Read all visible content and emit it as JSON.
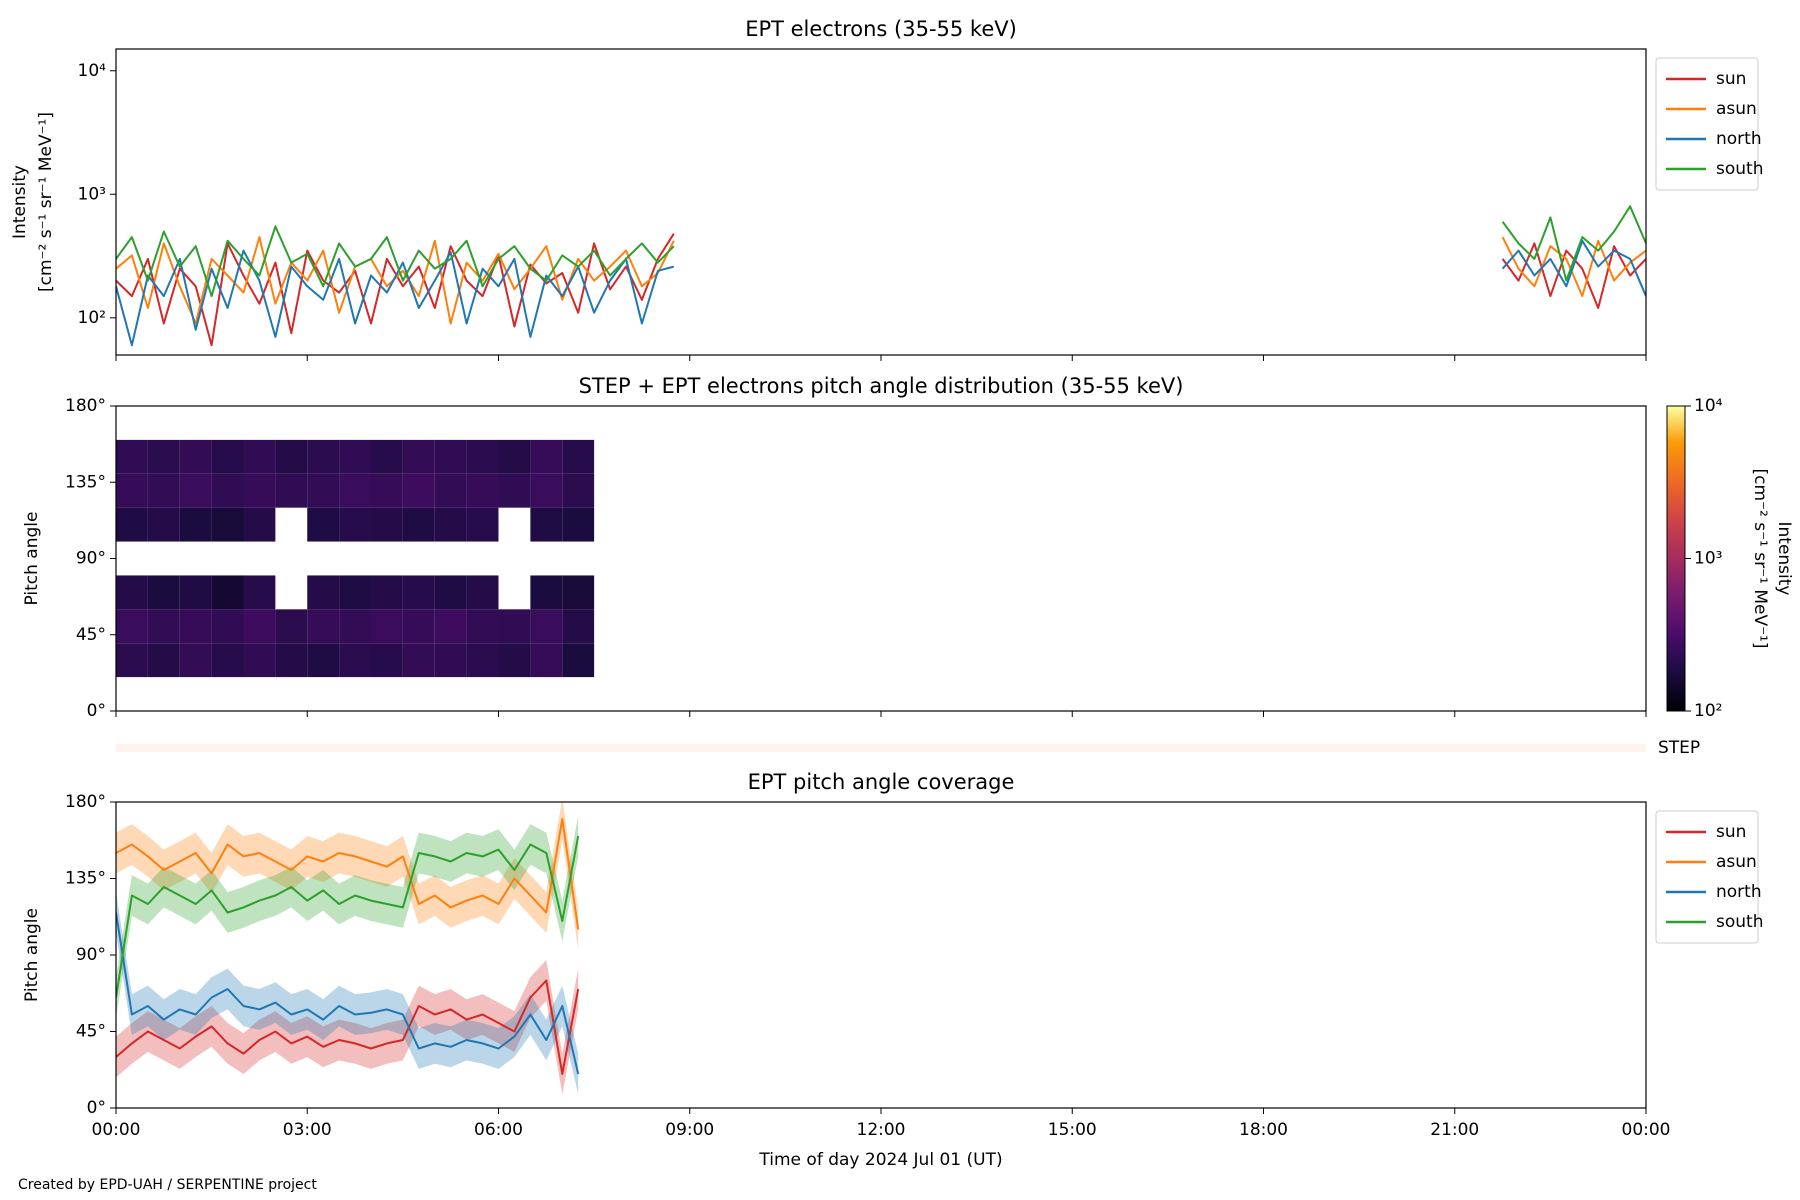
{
  "chart_data": [
    {
      "type": "line",
      "title": "EPT electrons (35-55 keV)",
      "ylabel": [
        "Intensity",
        "[cm⁻² s⁻¹ sr⁻¹ MeV⁻¹]"
      ],
      "yscale": "log",
      "ylim": [
        50,
        15000
      ],
      "yticks": [
        {
          "value": 100,
          "label": "10²"
        },
        {
          "value": 1000,
          "label": "10³"
        },
        {
          "value": 10000,
          "label": "10⁴"
        }
      ],
      "xlim": [
        0,
        24
      ],
      "xticks": [
        0,
        3,
        6,
        9,
        12,
        15,
        18,
        21,
        24
      ],
      "legend": "outside right",
      "x": [
        0,
        0.25,
        0.5,
        0.75,
        1,
        1.25,
        1.5,
        1.75,
        2,
        2.25,
        2.5,
        2.75,
        3,
        3.25,
        3.5,
        3.75,
        4,
        4.25,
        4.5,
        4.75,
        5,
        5.25,
        5.5,
        5.75,
        6,
        6.25,
        6.5,
        6.75,
        7,
        7.25,
        7.5,
        7.75,
        8,
        8.25,
        8.5,
        8.75,
        15,
        21.75,
        22,
        22.25,
        22.5,
        22.75,
        23,
        23.25,
        23.5,
        23.75,
        24
      ],
      "series": [
        {
          "name": "sun",
          "color": "#d62728",
          "values": [
            200,
            150,
            300,
            90,
            250,
            180,
            60,
            400,
            220,
            130,
            280,
            75,
            350,
            200,
            160,
            240,
            90,
            300,
            180,
            260,
            120,
            380,
            200,
            150,
            320,
            85,
            270,
            190,
            230,
            110,
            400,
            170,
            260,
            140,
            300,
            480,
            null,
            300,
            200,
            400,
            150,
            350,
            250,
            120,
            380,
            220,
            300
          ]
        },
        {
          "name": "asun",
          "color": "#ff7f0e",
          "values": [
            250,
            320,
            120,
            400,
            180,
            90,
            300,
            220,
            160,
            450,
            130,
            280,
            200,
            350,
            110,
            260,
            300,
            180,
            240,
            150,
            420,
            90,
            280,
            200,
            330,
            170,
            250,
            380,
            140,
            300,
            200,
            260,
            350,
            180,
            230,
            420,
            null,
            450,
            250,
            180,
            380,
            300,
            150,
            420,
            200,
            280,
            350
          ]
        },
        {
          "name": "north",
          "color": "#1f77b4",
          "values": [
            180,
            60,
            220,
            150,
            300,
            80,
            250,
            120,
            350,
            200,
            70,
            260,
            180,
            140,
            300,
            90,
            220,
            160,
            280,
            120,
            200,
            340,
            90,
            250,
            180,
            300,
            70,
            220,
            150,
            260,
            110,
            200,
            300,
            90,
            240,
            260,
            null,
            250,
            350,
            220,
            300,
            180,
            420,
            260,
            350,
            300,
            150
          ]
        },
        {
          "name": "south",
          "color": "#2ca02c",
          "values": [
            300,
            450,
            200,
            500,
            260,
            380,
            150,
            420,
            300,
            220,
            550,
            280,
            330,
            180,
            400,
            260,
            300,
            450,
            200,
            350,
            250,
            300,
            420,
            180,
            300,
            380,
            250,
            200,
            320,
            260,
            350,
            220,
            300,
            400,
            280,
            380,
            null,
            600,
            400,
            300,
            650,
            200,
            450,
            350,
            500,
            800,
            400
          ]
        }
      ]
    },
    {
      "type": "heatmap",
      "title": "STEP + EPT electrons pitch angle distribution (35-55 keV)",
      "ylabel": "Pitch angle",
      "ylim": [
        0,
        180
      ],
      "yticks": [
        {
          "value": 0,
          "label": "0°"
        },
        {
          "value": 45,
          "label": "45°"
        },
        {
          "value": 90,
          "label": "90°"
        },
        {
          "value": 135,
          "label": "135°"
        },
        {
          "value": 180,
          "label": "180°"
        }
      ],
      "xlim": [
        0,
        24
      ],
      "xticks": [
        0,
        3,
        6,
        9,
        12,
        15,
        18,
        21,
        24
      ],
      "xbins": [
        0,
        0.5,
        1,
        1.5,
        2,
        2.5,
        3,
        3.5,
        4,
        4.5,
        5,
        5.5,
        6,
        6.5,
        7,
        7.5
      ],
      "ybins": [
        0,
        20,
        40,
        60,
        80,
        100,
        120,
        140,
        160,
        180
      ],
      "z": [
        [
          null,
          null,
          null,
          null,
          null,
          null,
          null,
          null,
          null,
          null,
          null,
          null,
          null,
          null,
          null
        ],
        [
          220,
          200,
          240,
          210,
          230,
          200,
          190,
          220,
          210,
          240,
          230,
          220,
          200,
          250,
          180
        ],
        [
          260,
          240,
          250,
          230,
          270,
          220,
          250,
          240,
          260,
          250,
          270,
          240,
          230,
          260,
          200
        ],
        [
          200,
          180,
          190,
          160,
          210,
          null,
          200,
          190,
          200,
          210,
          190,
          200,
          null,
          180,
          170
        ],
        [
          null,
          null,
          null,
          null,
          null,
          null,
          null,
          null,
          null,
          null,
          null,
          null,
          null,
          null,
          null
        ],
        [
          190,
          200,
          180,
          170,
          200,
          null,
          190,
          210,
          200,
          190,
          200,
          210,
          null,
          190,
          180
        ],
        [
          250,
          240,
          260,
          230,
          250,
          230,
          240,
          260,
          250,
          270,
          240,
          250,
          230,
          260,
          220
        ],
        [
          230,
          220,
          240,
          210,
          230,
          200,
          220,
          230,
          210,
          240,
          230,
          220,
          200,
          250,
          210
        ],
        [
          null,
          null,
          null,
          null,
          null,
          null,
          null,
          null,
          null,
          null,
          null,
          null,
          null,
          null,
          null
        ]
      ],
      "colormap": "inferno",
      "colorscale": "log",
      "clim": [
        100,
        10000
      ],
      "cticks": [
        {
          "value": 100,
          "label": "10²"
        },
        {
          "value": 1000,
          "label": "10³"
        },
        {
          "value": 10000,
          "label": "10⁴"
        }
      ],
      "clabel": [
        "Intensity",
        "[cm⁻² s⁻¹ sr⁻¹ MeV⁻¹]"
      ]
    },
    {
      "type": "band",
      "label": "STEP"
    },
    {
      "type": "line-band",
      "title": "EPT pitch angle coverage",
      "ylabel": "Pitch angle",
      "xlabel": "Time of day 2024 Jul 01 (UT)",
      "ylim": [
        0,
        180
      ],
      "yticks": [
        {
          "value": 0,
          "label": "0°"
        },
        {
          "value": 45,
          "label": "45°"
        },
        {
          "value": 90,
          "label": "90°"
        },
        {
          "value": 135,
          "label": "135°"
        },
        {
          "value": 180,
          "label": "180°"
        }
      ],
      "xlim": [
        0,
        24
      ],
      "xticks": [
        {
          "value": 0,
          "label": "00:00"
        },
        {
          "value": 3,
          "label": "03:00"
        },
        {
          "value": 6,
          "label": "06:00"
        },
        {
          "value": 9,
          "label": "09:00"
        },
        {
          "value": 12,
          "label": "12:00"
        },
        {
          "value": 15,
          "label": "15:00"
        },
        {
          "value": 18,
          "label": "18:00"
        },
        {
          "value": 21,
          "label": "21:00"
        },
        {
          "value": 24,
          "label": "00:00"
        }
      ],
      "legend": "outside right",
      "spread": 12,
      "x": [
        0,
        0.25,
        0.5,
        0.75,
        1,
        1.25,
        1.5,
        1.75,
        2,
        2.25,
        2.5,
        2.75,
        3,
        3.25,
        3.5,
        3.75,
        4,
        4.25,
        4.5,
        4.75,
        5,
        5.25,
        5.5,
        5.75,
        6,
        6.25,
        6.5,
        6.75,
        7,
        7.25
      ],
      "series": [
        {
          "name": "sun",
          "color": "#d62728",
          "values": [
            30,
            38,
            45,
            40,
            35,
            42,
            48,
            38,
            32,
            40,
            45,
            38,
            42,
            36,
            40,
            38,
            35,
            38,
            40,
            60,
            55,
            58,
            52,
            55,
            50,
            45,
            65,
            75,
            20,
            70
          ]
        },
        {
          "name": "asun",
          "color": "#ff7f0e",
          "values": [
            150,
            155,
            148,
            140,
            145,
            150,
            138,
            155,
            148,
            150,
            145,
            140,
            148,
            145,
            150,
            148,
            145,
            142,
            148,
            120,
            125,
            118,
            122,
            125,
            120,
            135,
            125,
            115,
            170,
            105
          ]
        },
        {
          "name": "north",
          "color": "#1f77b4",
          "values": [
            115,
            55,
            60,
            52,
            58,
            55,
            65,
            70,
            60,
            58,
            62,
            55,
            58,
            52,
            60,
            55,
            56,
            58,
            55,
            35,
            38,
            36,
            40,
            38,
            35,
            42,
            55,
            40,
            60,
            20
          ]
        },
        {
          "name": "south",
          "color": "#2ca02c",
          "values": [
            65,
            125,
            120,
            130,
            125,
            120,
            128,
            115,
            118,
            122,
            125,
            130,
            122,
            128,
            120,
            125,
            122,
            120,
            118,
            150,
            148,
            145,
            150,
            148,
            152,
            140,
            155,
            150,
            110,
            160
          ]
        }
      ]
    }
  ],
  "footer": "Created by EPD-UAH / SERPENTINE project"
}
